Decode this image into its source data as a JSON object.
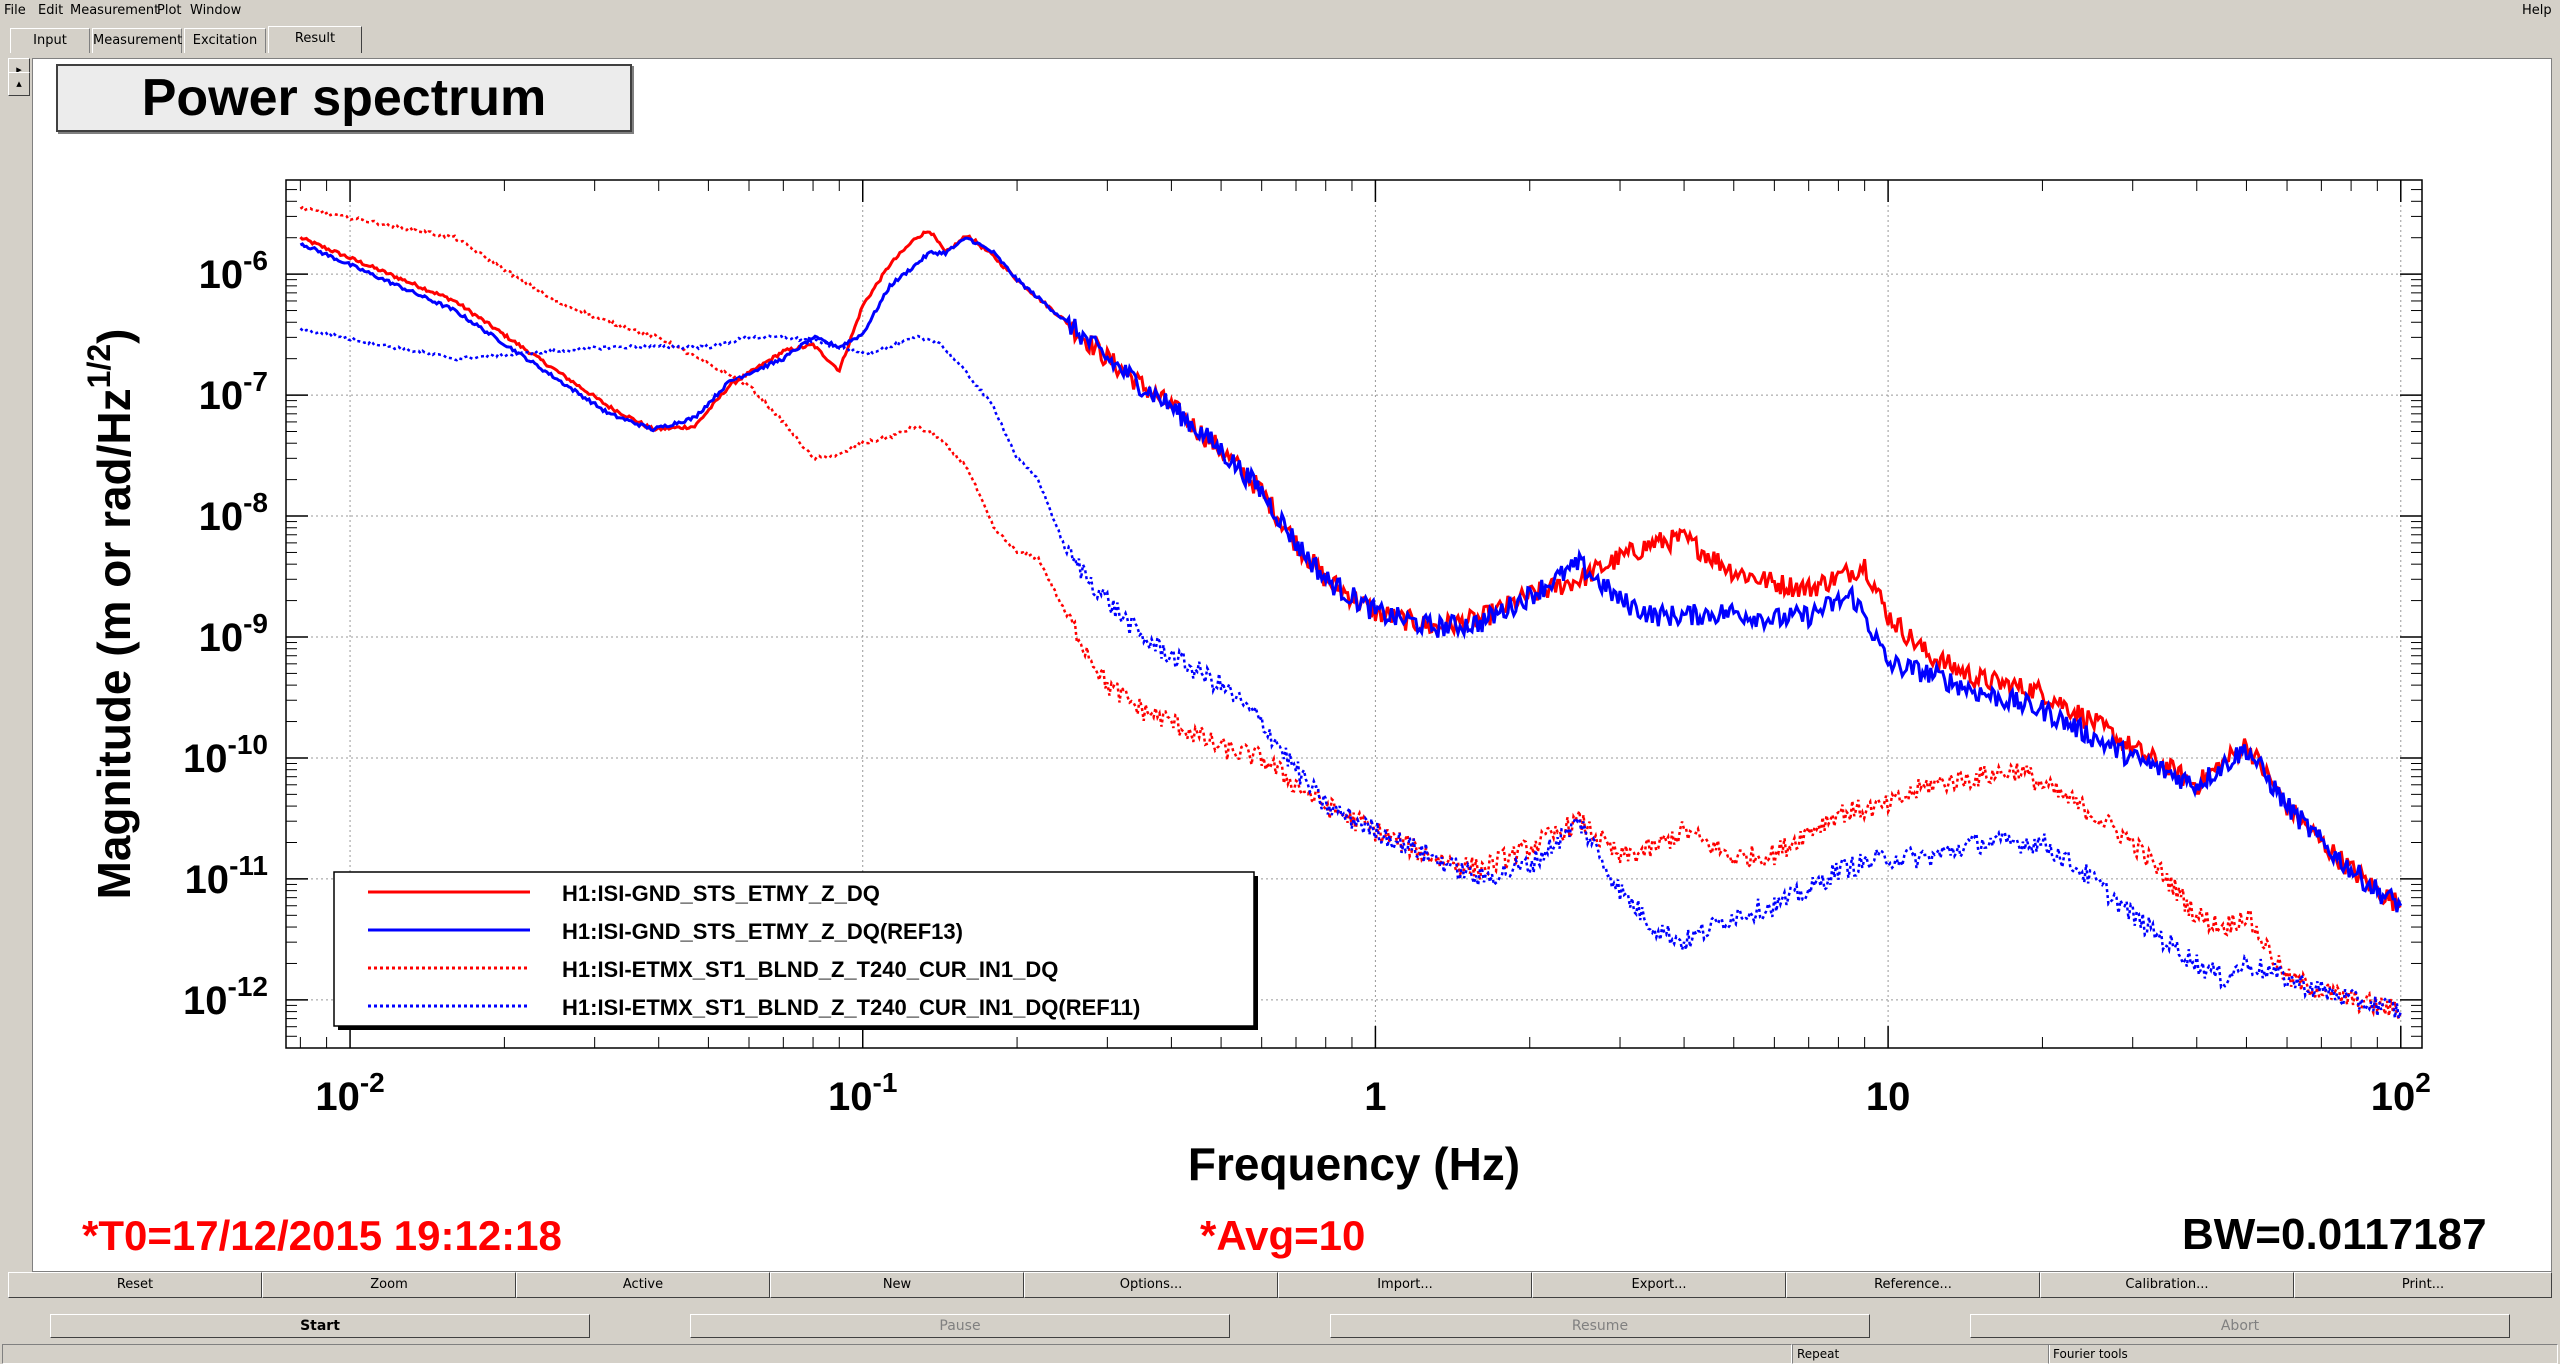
{
  "menubar": {
    "items": [
      "File",
      "Edit",
      "Measurement",
      "Plot",
      "Window"
    ],
    "help": "Help"
  },
  "tabs": [
    "Input",
    "Measurement",
    "Excitation",
    "Result"
  ],
  "active_tab": "Result",
  "plot": {
    "title": "Power spectrum",
    "t0": "*T0=17/12/2015 19:12:18",
    "avg": "*Avg=10",
    "bw": "BW=0.0117187"
  },
  "chart_data": {
    "type": "line",
    "title": "Power spectrum",
    "xlabel": "Frequency (Hz)",
    "ylabel": "Magnitude (m or rad/Hz^1/2)",
    "xscale": "log",
    "yscale": "log",
    "xlim": [
      0.0075,
      110
    ],
    "ylim": [
      4e-13,
      6e-06
    ],
    "grid": true,
    "legend_position": "bottom-left",
    "x_tick_labels": [
      "10-2",
      "10-1",
      "1",
      "10",
      "102"
    ],
    "y_tick_labels": [
      "10-6",
      "10-7",
      "10-8",
      "10-9",
      "10-10",
      "10-11",
      "10-12"
    ],
    "series": [
      {
        "name": "H1:ISI-GND_STS_ETMY_Z_DQ",
        "color": "#ff0000",
        "style": "solid",
        "x": [
          0.008,
          0.016,
          0.032,
          0.039,
          0.047,
          0.055,
          0.07,
          0.08,
          0.09,
          0.1,
          0.113,
          0.127,
          0.135,
          0.145,
          0.16,
          0.18,
          0.2,
          0.25,
          0.3,
          0.35,
          0.4,
          0.5,
          0.6,
          0.7,
          0.8,
          1.0,
          1.3,
          1.6,
          2.0,
          2.5,
          3.0,
          3.5,
          4.0,
          5.0,
          6.0,
          7.0,
          8.5,
          9.0,
          10.0,
          12.0,
          15.0,
          20.0,
          25.0,
          30.0,
          40.0,
          50.0,
          60.0,
          70.0,
          80.0,
          90.0,
          100.0
        ],
        "y": [
          2e-06,
          6e-07,
          8e-08,
          5.2e-08,
          5.5e-08,
          1.2e-07,
          2.3e-07,
          2.6e-07,
          1.6e-07,
          5.5e-07,
          1.2e-06,
          2e-06,
          2.3e-06,
          1.5e-06,
          2.1e-06,
          1.4e-06,
          9e-07,
          4e-07,
          2e-07,
          1.2e-07,
          8e-08,
          3.5e-08,
          1.6e-08,
          6e-09,
          3e-09,
          1.6e-09,
          1.2e-09,
          1.4e-09,
          2.2e-09,
          3e-09,
          4.5e-09,
          6e-09,
          6.5e-09,
          3.5e-09,
          2.8e-09,
          2.5e-09,
          3.5e-09,
          4e-09,
          1.5e-09,
          7e-10,
          4.5e-10,
          3.5e-10,
          2e-10,
          1.2e-10,
          6e-11,
          1.3e-10,
          4e-11,
          2e-11,
          1.2e-11,
          8e-12,
          6e-12
        ]
      },
      {
        "name": "H1:ISI-GND_STS_ETMY_Z_DQ(REF13)",
        "color": "#0000ff",
        "style": "solid",
        "x": [
          0.008,
          0.016,
          0.032,
          0.039,
          0.047,
          0.055,
          0.07,
          0.08,
          0.09,
          0.1,
          0.113,
          0.127,
          0.135,
          0.145,
          0.16,
          0.18,
          0.2,
          0.25,
          0.3,
          0.35,
          0.4,
          0.5,
          0.6,
          0.7,
          0.8,
          1.0,
          1.3,
          1.6,
          2.0,
          2.5,
          3.0,
          3.5,
          4.0,
          5.0,
          6.0,
          7.0,
          8.5,
          9.0,
          10.0,
          12.0,
          15.0,
          20.0,
          25.0,
          30.0,
          40.0,
          50.0,
          60.0,
          70.0,
          80.0,
          90.0,
          100.0
        ],
        "y": [
          1.8e-06,
          5e-07,
          7e-08,
          5.2e-08,
          6.5e-08,
          1.3e-07,
          2e-07,
          3e-07,
          2.5e-07,
          3.2e-07,
          8e-07,
          1.2e-06,
          1.5e-06,
          1.5e-06,
          2e-06,
          1.5e-06,
          9e-07,
          4e-07,
          2e-07,
          1.2e-07,
          8e-08,
          3.5e-08,
          1.6e-08,
          6e-09,
          3e-09,
          1.6e-09,
          1.2e-09,
          1.3e-09,
          2.2e-09,
          4e-09,
          2e-09,
          1.5e-09,
          1.5e-09,
          1.6e-09,
          1.4e-09,
          1.5e-09,
          2.2e-09,
          1.5e-09,
          6e-10,
          5e-10,
          3.5e-10,
          2.5e-10,
          1.5e-10,
          1e-10,
          6e-11,
          1.2e-10,
          4e-11,
          2e-11,
          1.2e-11,
          8e-12,
          6e-12
        ]
      },
      {
        "name": "H1:ISI-ETMX_ST1_BLND_Z_T240_CUR_IN1_DQ",
        "color": "#ff0000",
        "style": "dotted",
        "x": [
          0.008,
          0.016,
          0.025,
          0.032,
          0.04,
          0.05,
          0.06,
          0.07,
          0.08,
          0.09,
          0.1,
          0.113,
          0.127,
          0.14,
          0.16,
          0.18,
          0.2,
          0.22,
          0.25,
          0.3,
          0.35,
          0.4,
          0.5,
          0.6,
          0.7,
          0.8,
          1.0,
          1.3,
          1.6,
          2.0,
          2.5,
          3.0,
          3.5,
          4.0,
          5.0,
          6.0,
          7.0,
          8.0,
          10.0,
          12.0,
          15.0,
          18.0,
          20.0,
          25.0,
          30.0,
          35.0,
          40.0,
          45.0,
          50.0,
          60.0,
          70.0,
          80.0,
          90.0,
          100.0
        ],
        "y": [
          3.5e-06,
          2e-06,
          6e-07,
          4e-07,
          3e-07,
          1.8e-07,
          1.2e-07,
          6e-08,
          3e-08,
          3.2e-08,
          4e-08,
          4.5e-08,
          5.5e-08,
          4.5e-08,
          2.5e-08,
          8e-09,
          5e-09,
          4.5e-09,
          1.5e-09,
          4e-10,
          2.5e-10,
          2e-10,
          1.2e-10,
          1e-10,
          6e-11,
          4e-11,
          2.5e-11,
          1.5e-11,
          1.2e-11,
          1.8e-11,
          3e-11,
          1.5e-11,
          1.8e-11,
          2.5e-11,
          1.5e-11,
          1.6e-11,
          2.5e-11,
          3.5e-11,
          4e-11,
          6e-11,
          7e-11,
          8e-11,
          6e-11,
          3.5e-11,
          2e-11,
          1e-11,
          5e-12,
          4e-12,
          5e-12,
          1.5e-12,
          1.2e-12,
          1e-12,
          9e-13,
          8e-13
        ]
      },
      {
        "name": "H1:ISI-ETMX_ST1_BLND_Z_T240_CUR_IN1_DQ(REF11)",
        "color": "#0000ff",
        "style": "dotted",
        "x": [
          0.008,
          0.016,
          0.025,
          0.032,
          0.04,
          0.05,
          0.06,
          0.07,
          0.08,
          0.09,
          0.1,
          0.113,
          0.127,
          0.14,
          0.16,
          0.18,
          0.2,
          0.22,
          0.25,
          0.3,
          0.35,
          0.4,
          0.5,
          0.6,
          0.7,
          0.8,
          1.0,
          1.3,
          1.6,
          2.0,
          2.5,
          3.0,
          3.5,
          4.0,
          5.0,
          6.0,
          7.0,
          8.0,
          10.0,
          12.0,
          15.0,
          18.0,
          20.0,
          25.0,
          30.0,
          35.0,
          40.0,
          45.0,
          50.0,
          60.0,
          70.0,
          80.0,
          90.0,
          100.0
        ],
        "y": [
          3.5e-07,
          2e-07,
          2.3e-07,
          2.5e-07,
          2.5e-07,
          2.5e-07,
          3e-07,
          3e-07,
          2.8e-07,
          2.5e-07,
          2.2e-07,
          2.5e-07,
          3e-07,
          2.8e-07,
          1.5e-07,
          8e-08,
          3e-08,
          2e-08,
          5e-09,
          2e-09,
          1e-09,
          7e-10,
          4e-10,
          2e-10,
          8e-11,
          4e-11,
          2.5e-11,
          1.5e-11,
          1e-11,
          1.3e-11,
          3e-11,
          8e-12,
          4e-12,
          3e-12,
          5e-12,
          6e-12,
          8e-12,
          1.2e-11,
          1.5e-11,
          1.5e-11,
          2e-11,
          2e-11,
          2e-11,
          1e-11,
          5e-12,
          3e-12,
          2e-12,
          1.5e-12,
          2e-12,
          1.5e-12,
          1.2e-12,
          1e-12,
          9e-13,
          8e-13
        ]
      }
    ]
  },
  "buttons_row1": [
    "Reset",
    "Zoom",
    "Active",
    "New",
    "Options...",
    "Import...",
    "Export...",
    "Reference...",
    "Calibration...",
    "Print..."
  ],
  "buttons_row2": [
    "Start",
    "Pause",
    "Resume",
    "Abort"
  ],
  "statusbar": [
    "Repeat",
    "Fourier tools"
  ]
}
